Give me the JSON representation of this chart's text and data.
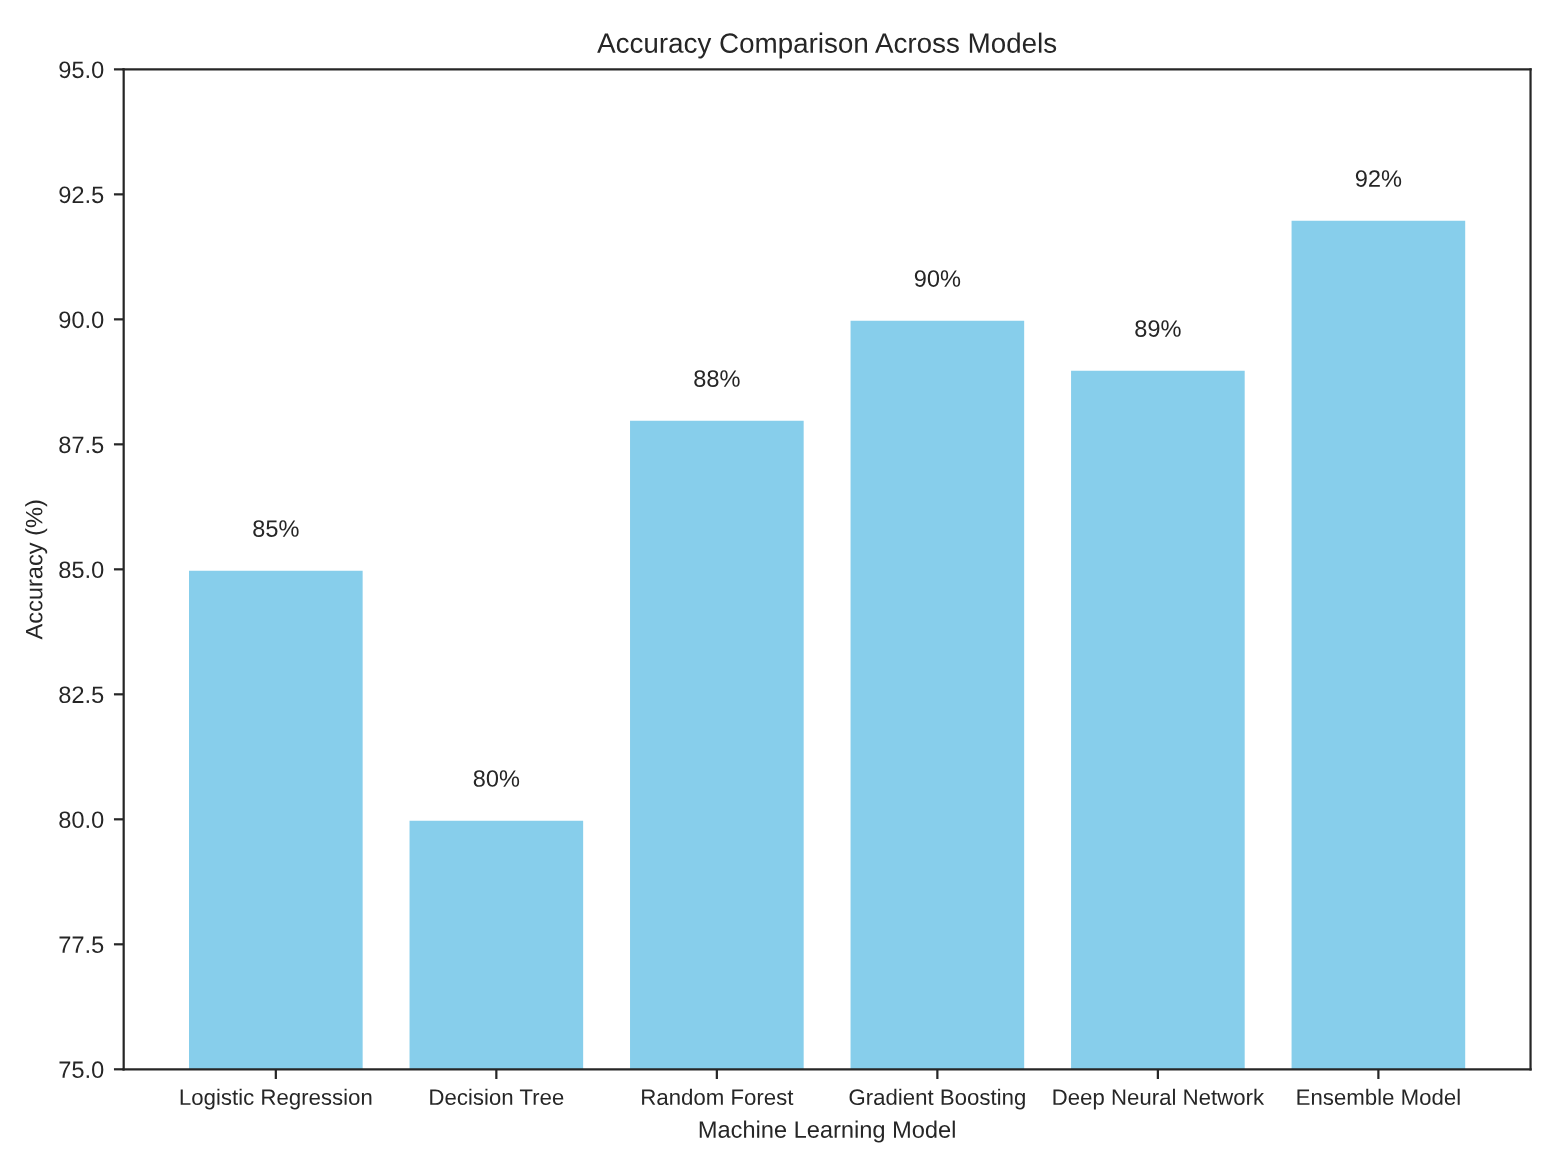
{
  "chart_data": {
    "type": "bar",
    "title": "Accuracy Comparison Across Models",
    "xlabel": "Machine Learning Model",
    "ylabel": "Accuracy (%)",
    "categories": [
      "Logistic Regression",
      "Decision Tree",
      "Random Forest",
      "Gradient Boosting",
      "Deep Neural Network",
      "Ensemble Model"
    ],
    "values": [
      85,
      80,
      88,
      90,
      89,
      92
    ],
    "color": "#87ceeb",
    "value_labels": [
      "85%",
      "80%",
      "88%",
      "90%",
      "89%",
      "92%"
    ],
    "ylim": [
      75.0,
      95.0
    ],
    "yticks": [
      {
        "value": 75,
        "label": "75.0"
      },
      {
        "value": 77.5,
        "label": "77.5"
      },
      {
        "value": 80,
        "label": "80.0"
      },
      {
        "value": 82.5,
        "label": "82.5"
      },
      {
        "value": 85,
        "label": "85.0"
      },
      {
        "value": 87.5,
        "label": "87.5"
      },
      {
        "value": 90,
        "label": "90.0"
      },
      {
        "value": 92.5,
        "label": "92.5"
      },
      {
        "value": 95,
        "label": "95.0"
      }
    ]
  }
}
